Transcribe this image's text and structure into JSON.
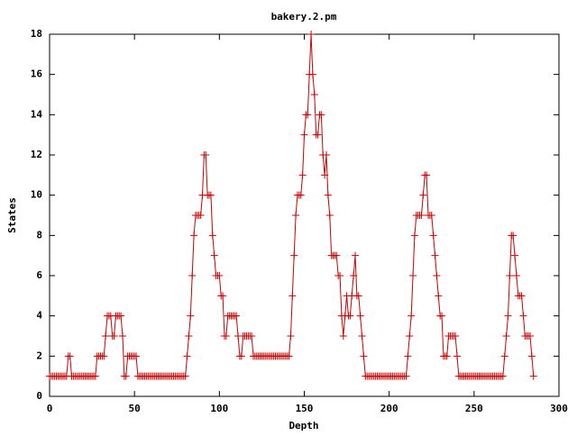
{
  "chart_data": {
    "type": "line",
    "title": "bakery.2.pm",
    "x_label": "Depth",
    "y_label": "States",
    "xlim": [
      0,
      300
    ],
    "ylim": [
      0,
      18
    ],
    "xticks": [
      0,
      50,
      100,
      150,
      200,
      250,
      300
    ],
    "yticks": [
      0,
      2,
      4,
      6,
      8,
      10,
      12,
      14,
      16,
      18
    ],
    "series": [
      {
        "color": "#cc0000",
        "x": [
          0,
          1,
          2,
          3,
          4,
          5,
          6,
          7,
          8,
          9,
          10,
          11,
          12,
          13,
          14,
          15,
          16,
          17,
          18,
          19,
          20,
          21,
          22,
          23,
          24,
          25,
          26,
          27,
          28,
          29,
          30,
          31,
          32,
          33,
          34,
          35,
          36,
          37,
          38,
          39,
          40,
          41,
          42,
          43,
          44,
          45,
          46,
          47,
          48,
          49,
          50,
          51,
          52,
          53,
          54,
          55,
          56,
          57,
          58,
          59,
          60,
          61,
          62,
          63,
          64,
          65,
          66,
          67,
          68,
          69,
          70,
          71,
          72,
          73,
          74,
          75,
          76,
          77,
          78,
          79,
          80,
          81,
          82,
          83,
          84,
          85,
          86,
          87,
          88,
          89,
          90,
          91,
          92,
          93,
          94,
          95,
          96,
          97,
          98,
          99,
          100,
          101,
          102,
          103,
          104,
          105,
          106,
          107,
          108,
          109,
          110,
          111,
          112,
          113,
          114,
          115,
          116,
          117,
          118,
          119,
          120,
          121,
          122,
          123,
          124,
          125,
          126,
          127,
          128,
          129,
          130,
          131,
          132,
          133,
          134,
          135,
          136,
          137,
          138,
          139,
          140,
          141,
          142,
          143,
          144,
          145,
          146,
          147,
          148,
          149,
          150,
          151,
          152,
          153,
          154,
          155,
          156,
          157,
          158,
          159,
          160,
          161,
          162,
          163,
          164,
          165,
          166,
          167,
          168,
          169,
          170,
          171,
          172,
          173,
          174,
          175,
          176,
          177,
          178,
          179,
          180,
          181,
          182,
          183,
          184,
          185,
          186,
          187,
          188,
          189,
          190,
          191,
          192,
          193,
          194,
          195,
          196,
          197,
          198,
          199,
          200,
          201,
          202,
          203,
          204,
          205,
          206,
          207,
          208,
          209,
          210,
          211,
          212,
          213,
          214,
          215,
          216,
          217,
          218,
          219,
          220,
          221,
          222,
          223,
          224,
          225,
          226,
          227,
          228,
          229,
          230,
          231,
          232,
          233,
          234,
          235,
          236,
          237,
          238,
          239,
          240,
          241,
          242,
          243,
          244,
          245,
          246,
          247,
          248,
          249,
          250,
          251,
          252,
          253,
          254,
          255,
          256,
          257,
          258,
          259,
          260,
          261,
          262,
          263,
          264,
          265,
          266,
          267,
          268,
          269,
          270,
          271,
          272,
          273,
          274,
          275,
          276,
          277,
          278,
          279,
          280,
          281,
          282,
          283,
          284,
          285
        ],
        "values": [
          1,
          1,
          1,
          1,
          1,
          1,
          1,
          1,
          1,
          1,
          1,
          2,
          2,
          1,
          1,
          1,
          1,
          1,
          1,
          1,
          1,
          1,
          1,
          1,
          1,
          1,
          1,
          1,
          2,
          2,
          2,
          2,
          2,
          3,
          4,
          4,
          4,
          3,
          3,
          4,
          4,
          4,
          4,
          3,
          1,
          1,
          2,
          2,
          2,
          2,
          2,
          2,
          1,
          1,
          1,
          1,
          1,
          1,
          1,
          1,
          1,
          1,
          1,
          1,
          1,
          1,
          1,
          1,
          1,
          1,
          1,
          1,
          1,
          1,
          1,
          1,
          1,
          1,
          1,
          1,
          1,
          2,
          3,
          4,
          6,
          8,
          9,
          9,
          9,
          9,
          10,
          12,
          12,
          10,
          10,
          10,
          8,
          7,
          6,
          6,
          6,
          5,
          5,
          3,
          3,
          4,
          4,
          4,
          4,
          4,
          4,
          3,
          2,
          2,
          3,
          3,
          3,
          3,
          3,
          3,
          2,
          2,
          2,
          2,
          2,
          2,
          2,
          2,
          2,
          2,
          2,
          2,
          2,
          2,
          2,
          2,
          2,
          2,
          2,
          2,
          2,
          2,
          3,
          5,
          7,
          9,
          10,
          10,
          10,
          11,
          13,
          14,
          14,
          16,
          18,
          16,
          15,
          13,
          13,
          14,
          14,
          12,
          11,
          12,
          10,
          9,
          7,
          7,
          7,
          7,
          6,
          6,
          4,
          3,
          4,
          5,
          4,
          4,
          5,
          6,
          7,
          5,
          5,
          4,
          3,
          2,
          1,
          1,
          1,
          1,
          1,
          1,
          1,
          1,
          1,
          1,
          1,
          1,
          1,
          1,
          1,
          1,
          1,
          1,
          1,
          1,
          1,
          1,
          1,
          1,
          1,
          2,
          3,
          4,
          6,
          8,
          9,
          9,
          9,
          9,
          10,
          11,
          11,
          9,
          9,
          9,
          8,
          7,
          6,
          5,
          4,
          4,
          2,
          2,
          2,
          3,
          3,
          3,
          3,
          3,
          2,
          1,
          1,
          1,
          1,
          1,
          1,
          1,
          1,
          1,
          1,
          1,
          1,
          1,
          1,
          1,
          1,
          1,
          1,
          1,
          1,
          1,
          1,
          1,
          1,
          1,
          1,
          1,
          2,
          3,
          4,
          6,
          8,
          8,
          7,
          6,
          5,
          5,
          5,
          4,
          3,
          3,
          3,
          3,
          2,
          1
        ]
      }
    ]
  }
}
